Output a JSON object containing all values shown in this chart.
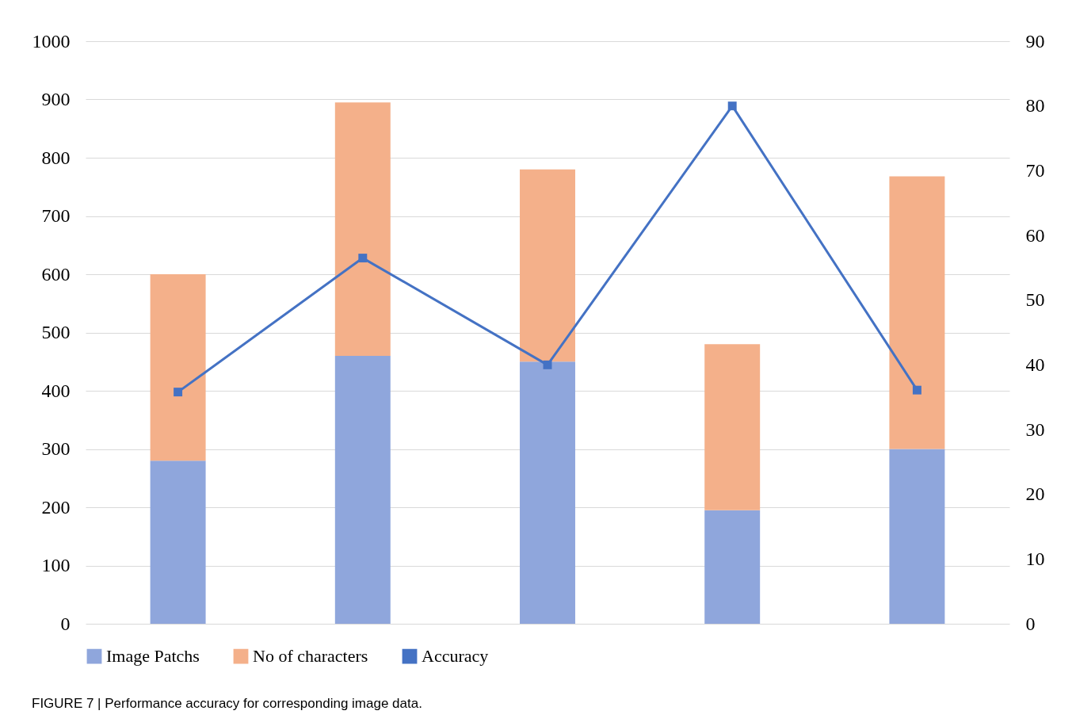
{
  "chart_data": {
    "type": "bar",
    "stacked": true,
    "categories": [
      null,
      null,
      null,
      null,
      null
    ],
    "series": [
      {
        "name": "Image Patchs",
        "color": "#8fa6dc",
        "values": [
          280,
          460,
          450,
          195,
          300
        ]
      },
      {
        "name": "No of characters",
        "color": "#f4b08a",
        "values": [
          320,
          435,
          330,
          285,
          468
        ]
      },
      {
        "name": "Accuracy",
        "type": "line",
        "axis": "y2",
        "color": "#4472c4",
        "marker": "square",
        "values": [
          35.8,
          56.5,
          40,
          80,
          36.1
        ]
      }
    ],
    "ylim": [
      0,
      1000
    ],
    "yticks": [
      0,
      100,
      200,
      300,
      400,
      500,
      600,
      700,
      800,
      900,
      1000
    ],
    "y2lim": [
      0,
      90
    ],
    "y2ticks": [
      0,
      10,
      20,
      30,
      40,
      50,
      60,
      70,
      80,
      90
    ],
    "grid": "y",
    "legend": "bottom",
    "annotations": [
      "FIGURE 7 | Performance accuracy for corresponding image data."
    ]
  }
}
